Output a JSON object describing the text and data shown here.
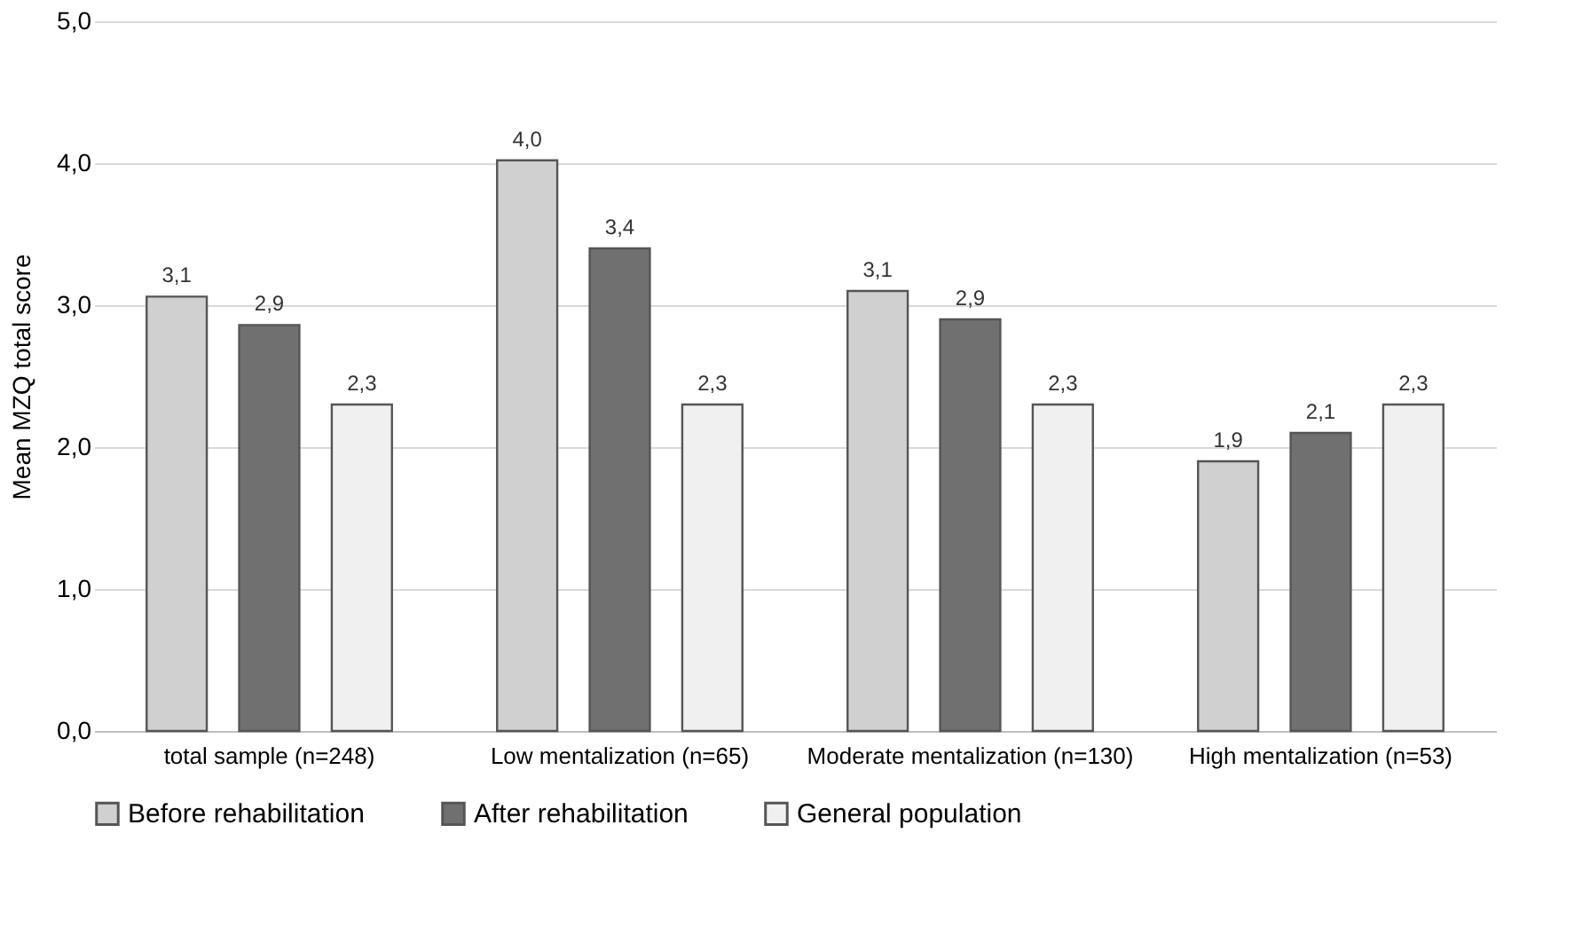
{
  "chart_data": {
    "type": "bar",
    "ylabel": "Mean MZQ total score",
    "categories": [
      "total sample (n=248)",
      "Low mentalization (n=65)",
      "Moderate mentalization (n=130)",
      "High mentalization (n=53)"
    ],
    "series": [
      {
        "name": "Before rehabilitation",
        "color": "#d0d0d0",
        "values": [
          3.06,
          4.02,
          3.1,
          1.9
        ],
        "value_labels": [
          "3,1",
          "4,0",
          "3,1",
          "1,9"
        ]
      },
      {
        "name": "After rehabilitation",
        "color": "#707070",
        "values": [
          2.86,
          3.4,
          2.9,
          2.1
        ],
        "value_labels": [
          "2,9",
          "3,4",
          "2,9",
          "2,1"
        ]
      },
      {
        "name": "General population",
        "color": "#f0f0f0",
        "values": [
          2.3,
          2.3,
          2.3,
          2.3
        ],
        "value_labels": [
          "2,3",
          "2,3",
          "2,3",
          "2,3"
        ]
      }
    ],
    "ylim": [
      0,
      5
    ],
    "yticks": [
      {
        "value": 0,
        "label": "0,0"
      },
      {
        "value": 1,
        "label": "1,0"
      },
      {
        "value": 2,
        "label": "2,0"
      },
      {
        "value": 3,
        "label": "3,0"
      },
      {
        "value": 4,
        "label": "4,0"
      },
      {
        "value": 5,
        "label": "5,0"
      }
    ],
    "grid": "y",
    "legend": "bottom"
  }
}
